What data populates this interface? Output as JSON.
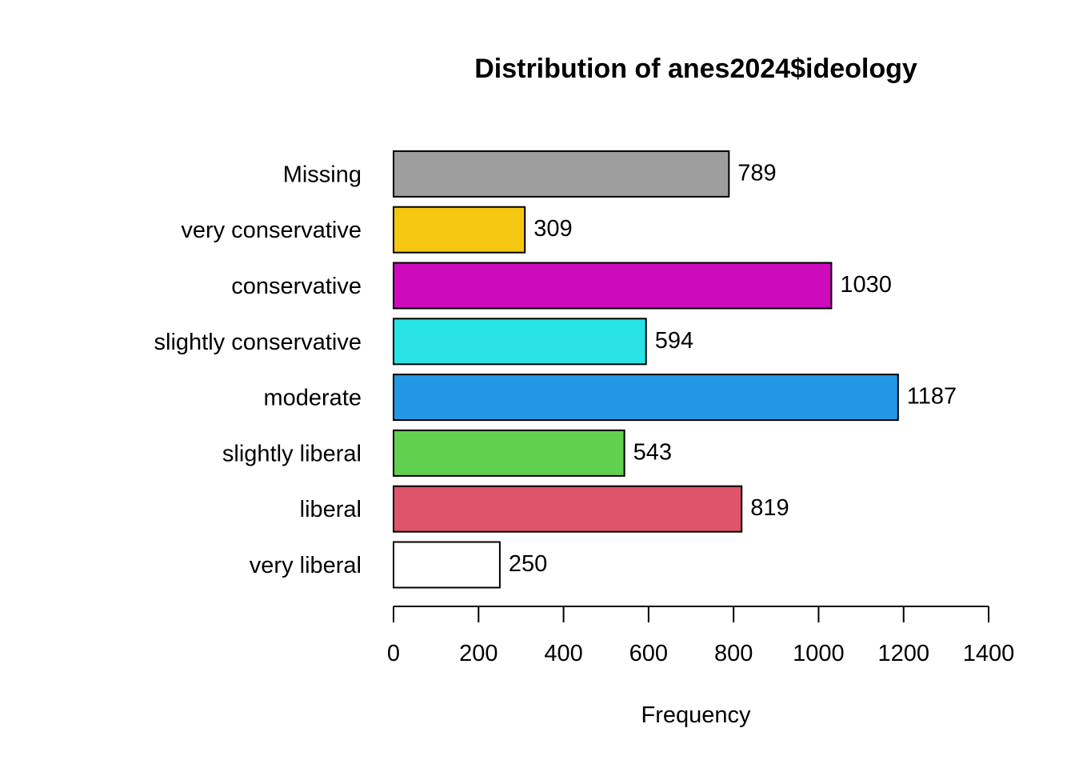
{
  "chart_data": {
    "type": "bar",
    "orientation": "horizontal",
    "title": "Distribution of anes2024$ideology",
    "xlabel": "Frequency",
    "ylabel": "",
    "categories": [
      "very liberal",
      "liberal",
      "slightly liberal",
      "moderate",
      "slightly conservative",
      "conservative",
      "very conservative",
      "Missing"
    ],
    "values": [
      250,
      819,
      543,
      1187,
      594,
      1030,
      309,
      789
    ],
    "colors": [
      "#FFFFFF",
      "#DF536B",
      "#61D04F",
      "#2297E6",
      "#28E2E5",
      "#CD0BBC",
      "#F5C710",
      "#9E9E9E"
    ],
    "value_labels": [
      "250",
      "819",
      "543",
      "1187",
      "594",
      "1030",
      "309",
      "789"
    ],
    "xlim": [
      0,
      1400
    ],
    "x_ticks": [
      0,
      200,
      400,
      600,
      800,
      1000,
      1200,
      1400
    ],
    "x_tick_labels": [
      "0",
      "200",
      "400",
      "600",
      "800",
      "1000",
      "1200",
      "1400"
    ],
    "grid": false,
    "legend": "none"
  }
}
